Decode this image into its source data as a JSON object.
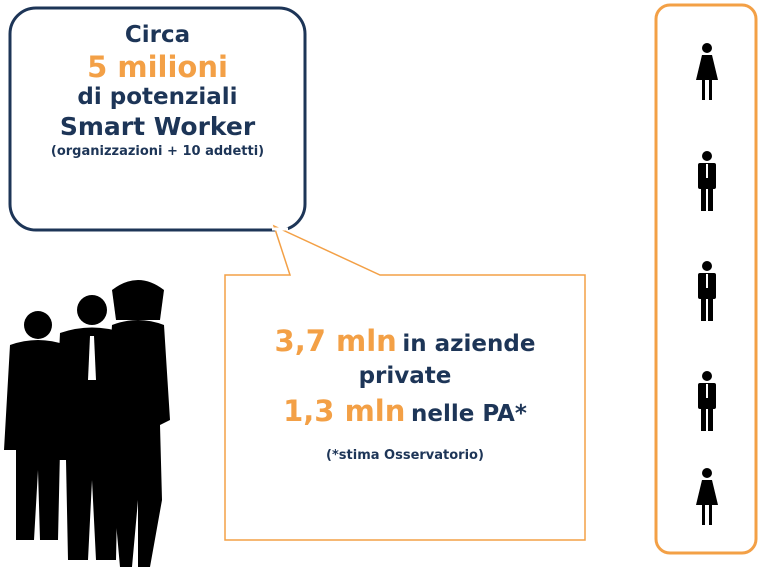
{
  "bubble": {
    "line1": "Circa",
    "line2": "5 milioni",
    "line3": "di potenziali",
    "line4": "Smart Worker",
    "line5": "(organizzazioni + 10 addetti)"
  },
  "callout": {
    "private_amount": "3,7 mln",
    "private_text1": "in aziende",
    "private_text2": "private",
    "pa_amount": "1,3 mln",
    "pa_text": "nelle PA*",
    "note": "(*stima Osservatorio)"
  }
}
